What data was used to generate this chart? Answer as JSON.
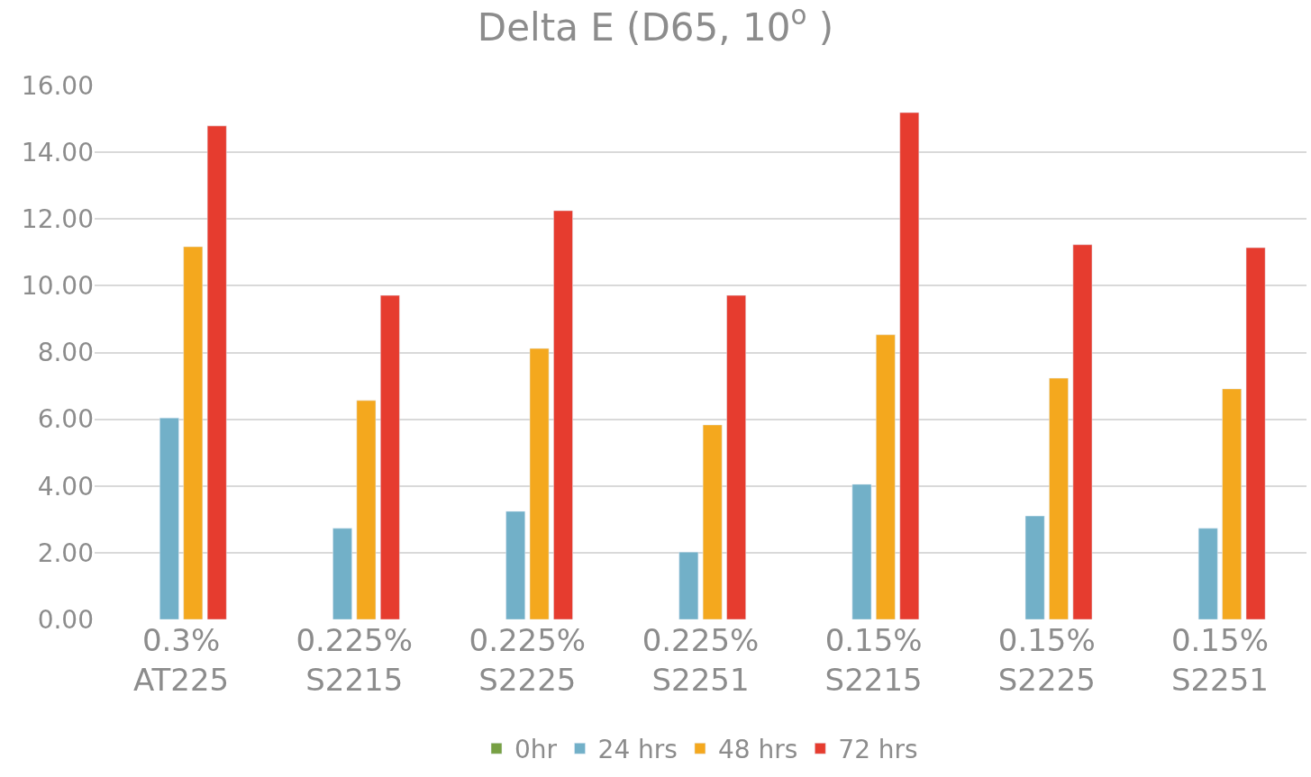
{
  "chart_data": {
    "type": "bar",
    "title": "Delta E (D65, 10$^{o}$ )",
    "categories": [
      "0.3%\nAT225",
      "0.225%\nS2215",
      "0.225%\nS2225",
      "0.225%\nS2251",
      "0.15%\nS2215",
      "0.15%\nS2225",
      "0.15%\nS2251"
    ],
    "series": [
      {
        "name": "0hr",
        "color": "#77a043",
        "values": [
          null,
          null,
          null,
          null,
          null,
          null,
          null
        ]
      },
      {
        "name": "24 hrs",
        "color": "#72b0c8",
        "values": [
          6.04,
          2.73,
          3.24,
          2.02,
          4.05,
          3.1,
          2.73
        ]
      },
      {
        "name": "48 hrs",
        "color": "#f4a81e",
        "values": [
          11.17,
          6.56,
          8.12,
          5.83,
          8.53,
          7.23,
          6.91
        ]
      },
      {
        "name": "72 hrs",
        "color": "#e63c2f",
        "values": [
          14.79,
          9.71,
          12.25,
          9.71,
          15.19,
          11.23,
          11.14
        ]
      }
    ],
    "ylim": [
      0,
      16
    ],
    "yticks": [
      {
        "value": 0,
        "label": "0.00"
      },
      {
        "value": 2,
        "label": "2.00"
      },
      {
        "value": 4,
        "label": "4.00"
      },
      {
        "value": 6,
        "label": "6.00"
      },
      {
        "value": 8,
        "label": "8.00"
      },
      {
        "value": 10,
        "label": "10.00"
      },
      {
        "value": 12,
        "label": "12.00"
      },
      {
        "value": 14,
        "label": "14.00"
      },
      {
        "value": 16,
        "label": "16.00"
      }
    ],
    "grid": "y",
    "legend": "bottom"
  }
}
